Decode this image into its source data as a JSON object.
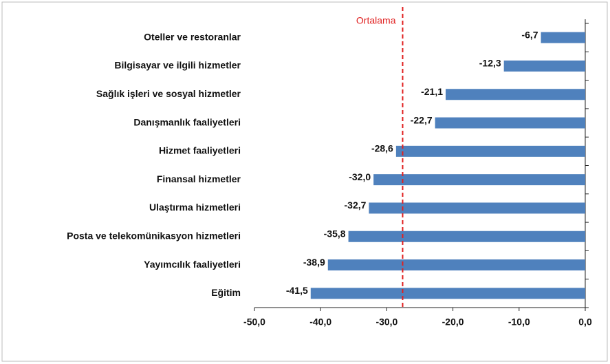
{
  "chart_data": {
    "type": "bar",
    "orientation": "horizontal",
    "categories": [
      "Oteller ve restoranlar",
      "Bilgisayar ve ilgili hizmetler",
      "Sağlık işleri ve sosyal hizmetler",
      "Danışmanlık faaliyetleri",
      "Hizmet faaliyetleri",
      "Finansal hizmetler",
      "Ulaştırma hizmetleri",
      "Posta ve telekomünikasyon hizmetleri",
      "Yayımcılık faaliyetleri",
      "Eğitim"
    ],
    "values": [
      -6.7,
      -12.3,
      -21.1,
      -22.7,
      -28.6,
      -32.0,
      -32.7,
      -35.8,
      -38.9,
      -41.5
    ],
    "value_labels": [
      "-6,7",
      "-12,3",
      "-21,1",
      "-22,7",
      "-28,6",
      "-32,0",
      "-32,7",
      "-35,8",
      "-38,9",
      "-41,5"
    ],
    "color": "#4f81bd",
    "xlim": [
      -50,
      0
    ],
    "xticks": [
      {
        "value": -50,
        "label": "-50,0"
      },
      {
        "value": -40,
        "label": "-40,0"
      },
      {
        "value": -30,
        "label": "-30,0"
      },
      {
        "value": -20,
        "label": "-20,0"
      },
      {
        "value": -10,
        "label": "-10,0"
      },
      {
        "value": 0,
        "label": "0,0"
      }
    ],
    "reference_line": {
      "label": "Ortalama",
      "value": -27.6,
      "color": "#e02020"
    }
  }
}
